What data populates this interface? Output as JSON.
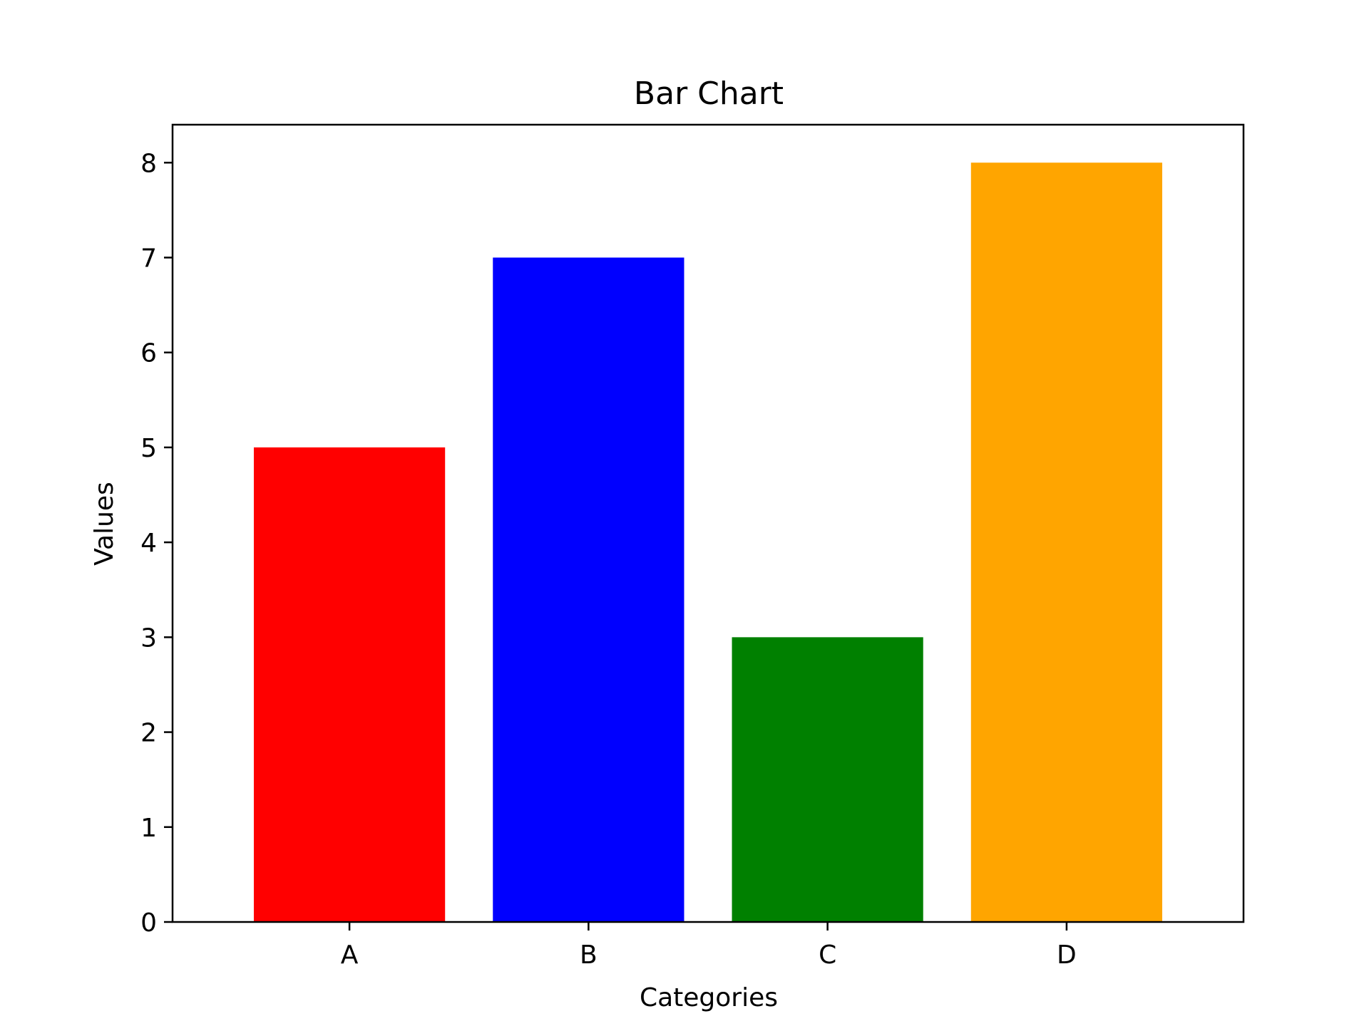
{
  "chart_data": {
    "type": "bar",
    "title": "Bar Chart",
    "xlabel": "Categories",
    "ylabel": "Values",
    "categories": [
      "A",
      "B",
      "C",
      "D"
    ],
    "values": [
      5,
      7,
      3,
      8
    ],
    "colors": [
      "#ff0000",
      "#0000ff",
      "#008000",
      "#ffa500"
    ],
    "yticks": [
      0,
      1,
      2,
      3,
      4,
      5,
      6,
      7,
      8
    ],
    "ylim": [
      0,
      8.4
    ],
    "grid": false,
    "legend": "none"
  }
}
